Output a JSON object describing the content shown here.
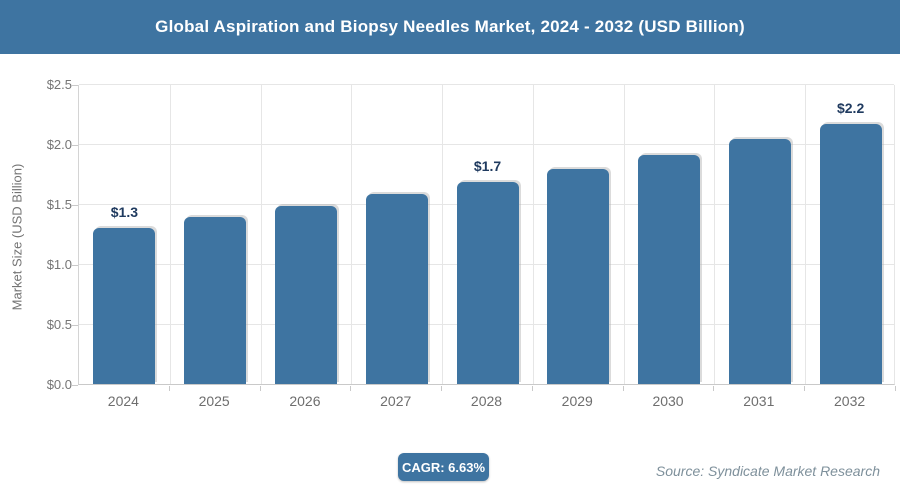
{
  "header": {
    "title": "Global Aspiration and Biopsy Needles Market, 2024 - 2032 (USD Billion)"
  },
  "chart_data": {
    "type": "bar",
    "title": "Global Aspiration and Biopsy Needles Market, 2024 - 2032 (USD Billion)",
    "categories": [
      "2024",
      "2025",
      "2026",
      "2027",
      "2028",
      "2029",
      "2030",
      "2031",
      "2032"
    ],
    "values": [
      1.3,
      1.39,
      1.48,
      1.58,
      1.68,
      1.79,
      1.91,
      2.04,
      2.17
    ],
    "data_labels": [
      "$1.3",
      "",
      "",
      "",
      "$1.7",
      "",
      "",
      "",
      "$2.2"
    ],
    "xlabel": "",
    "ylabel": "Market Size (USD Billion)",
    "ylim": [
      0,
      2.5
    ],
    "ytick_step": 0.5,
    "ytick_labels": [
      "$0.0",
      "$0.5",
      "$1.0",
      "$1.5",
      "$2.0",
      "$2.5"
    ],
    "grid": true,
    "legend": "none"
  },
  "footer": {
    "cagr_label": "CAGR: 6.63%",
    "source": "Source: Syndicate Market Research"
  },
  "colors": {
    "accent": "#3e74a1",
    "bar": "#3e74a1",
    "data_label": "#1f3a5f",
    "tick_label": "#757575",
    "category_label": "#6e6e6e",
    "gridline": "#e6e6e6",
    "source_text": "#7e909b",
    "title_text": "#ffffff",
    "background": "#ffffff"
  }
}
